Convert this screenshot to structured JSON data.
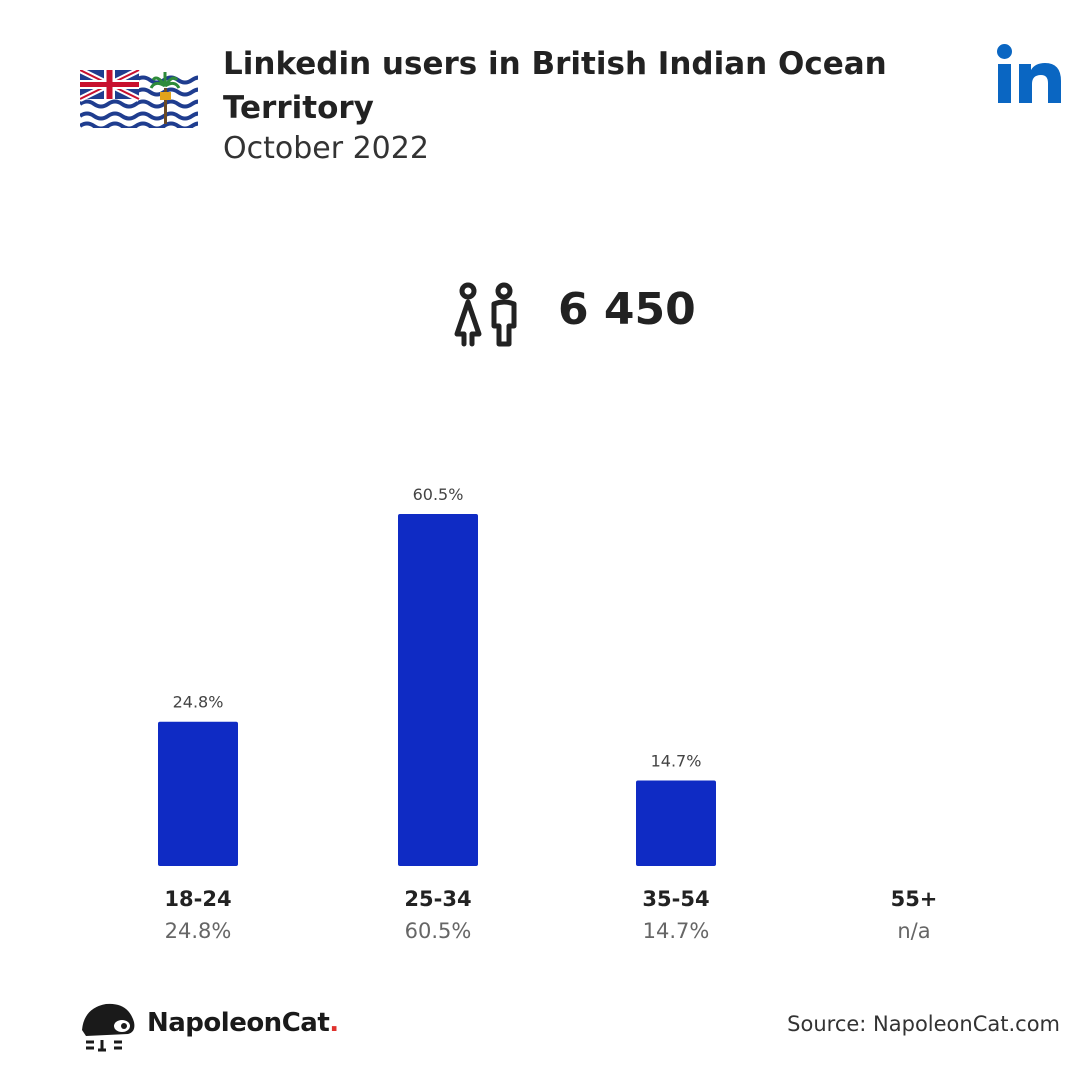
{
  "header": {
    "title": "Linkedin users in British Indian Ocean Territory",
    "subtitle": "October 2022",
    "flag_icon": "british-indian-ocean-territory-flag",
    "platform_icon": "linkedin-logo"
  },
  "summary": {
    "icon": "users-icon",
    "total_users": "6 450"
  },
  "chart_data": {
    "type": "bar",
    "categories": [
      "18-24",
      "25-34",
      "35-54",
      "55+"
    ],
    "values": [
      24.8,
      60.5,
      14.7,
      null
    ],
    "value_labels": [
      "24.8%",
      "60.5%",
      "14.7%",
      "n/a"
    ],
    "top_labels": [
      "24.8%",
      "60.5%",
      "14.7%",
      ""
    ],
    "ylim": [
      0,
      60.5
    ],
    "grid": false,
    "bar_color": "#0f2bc4"
  },
  "footer": {
    "brand_name": "NapoleonCat",
    "brand_dot": ".",
    "source_text": "Source: NapoleonCat.com"
  },
  "colors": {
    "linkedin_blue": "#0a66c2",
    "bar": "#0f2bc4",
    "brand_dot": "#e0322d"
  }
}
